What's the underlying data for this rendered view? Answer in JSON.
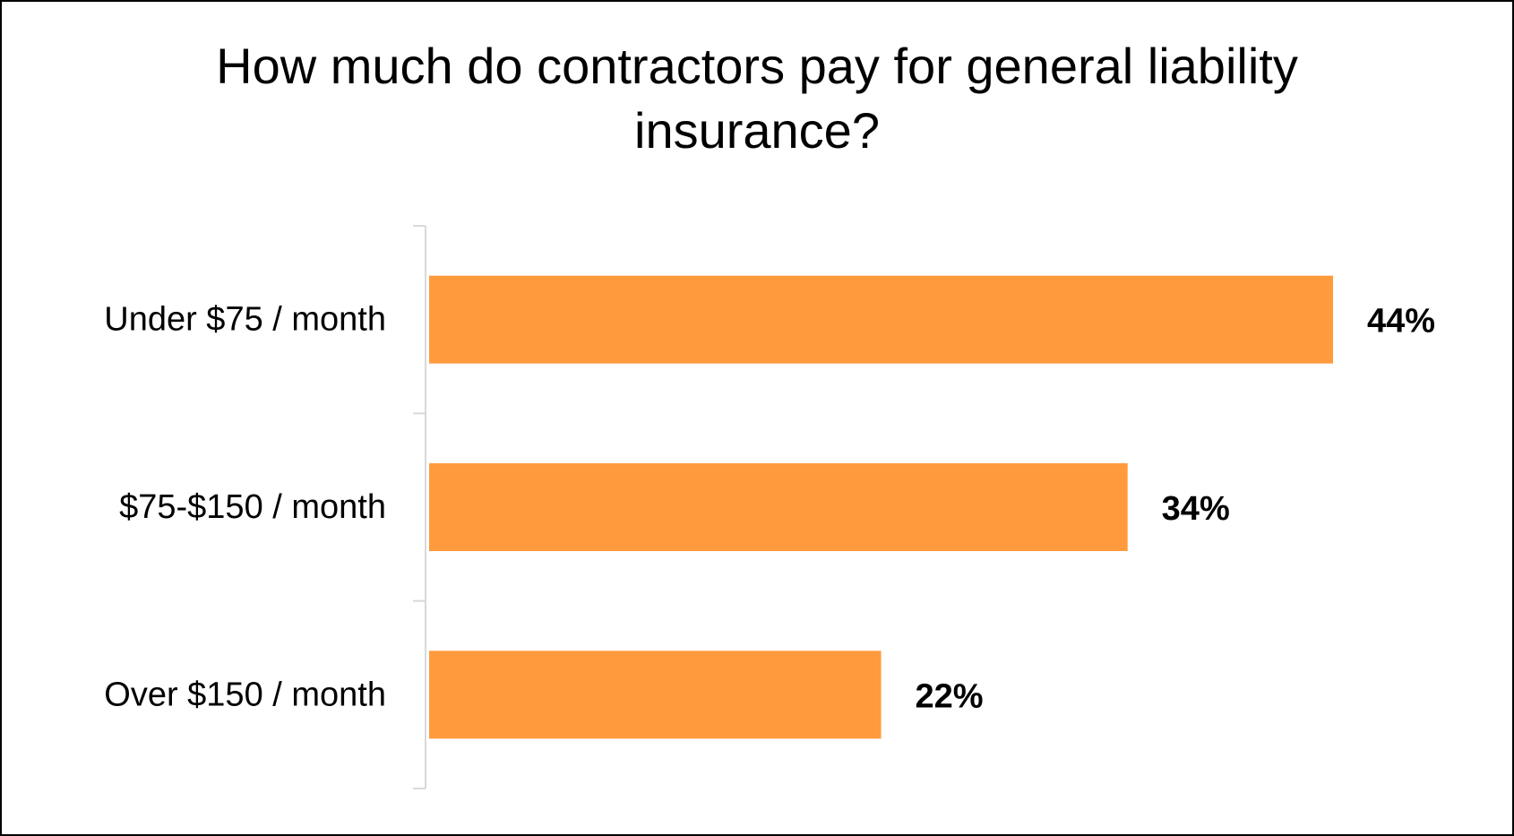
{
  "chart_data": {
    "type": "bar",
    "orientation": "horizontal",
    "title": "How much do contractors pay for general liability insurance?",
    "title_lines": [
      "How much do contractors pay for general liability",
      "insurance?"
    ],
    "categories": [
      "Under $75 / month",
      "$75-$150 / month",
      "Over $150 / month"
    ],
    "values": [
      44,
      34,
      22
    ],
    "value_labels": [
      "44%",
      "34%",
      "22%"
    ],
    "unit": "%",
    "xlim": [
      0,
      50
    ],
    "xlabel": "",
    "ylabel": "",
    "grid": false,
    "legend": "none",
    "bar_color": "#FF9A3D",
    "axis_color": "#D9D9D9"
  }
}
